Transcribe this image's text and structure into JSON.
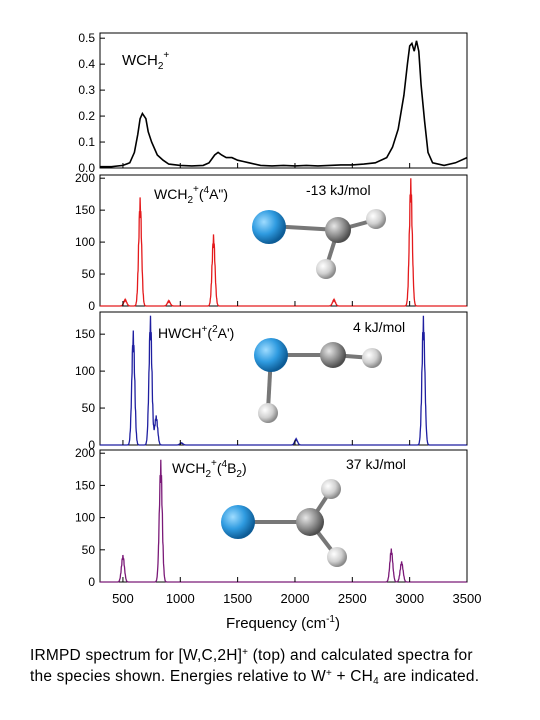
{
  "chart_data": {
    "type": "line",
    "xlabel": "Frequency (cm-1)",
    "xlim": [
      300,
      3500
    ],
    "xticks": [
      500,
      1000,
      1500,
      2000,
      2500,
      3000,
      3500
    ],
    "panels": [
      {
        "id": "exp",
        "label": "WCH2+",
        "energy": "",
        "color": "#000000",
        "ylim": [
          0,
          0.52
        ],
        "yticks": [
          "0.0",
          "0.1",
          "0.2",
          "0.3",
          "0.4",
          "0.5"
        ],
        "spectrum": "experimental",
        "points": [
          [
            300,
            0.005
          ],
          [
            400,
            0.005
          ],
          [
            500,
            0.01
          ],
          [
            560,
            0.02
          ],
          [
            600,
            0.06
          ],
          [
            630,
            0.13
          ],
          [
            650,
            0.19
          ],
          [
            670,
            0.21
          ],
          [
            700,
            0.19
          ],
          [
            720,
            0.14
          ],
          [
            750,
            0.1
          ],
          [
            800,
            0.05
          ],
          [
            850,
            0.03
          ],
          [
            900,
            0.015
          ],
          [
            1000,
            0.01
          ],
          [
            1100,
            0.008
          ],
          [
            1200,
            0.01
          ],
          [
            1250,
            0.02
          ],
          [
            1300,
            0.05
          ],
          [
            1330,
            0.06
          ],
          [
            1360,
            0.05
          ],
          [
            1400,
            0.04
          ],
          [
            1450,
            0.04
          ],
          [
            1500,
            0.03
          ],
          [
            1550,
            0.025
          ],
          [
            1600,
            0.02
          ],
          [
            1700,
            0.01
          ],
          [
            1800,
            0.008
          ],
          [
            1900,
            0.01
          ],
          [
            2000,
            0.008
          ],
          [
            2100,
            0.01
          ],
          [
            2200,
            0.008
          ],
          [
            2300,
            0.01
          ],
          [
            2400,
            0.012
          ],
          [
            2500,
            0.012
          ],
          [
            2600,
            0.015
          ],
          [
            2700,
            0.02
          ],
          [
            2800,
            0.04
          ],
          [
            2850,
            0.08
          ],
          [
            2900,
            0.15
          ],
          [
            2950,
            0.28
          ],
          [
            2980,
            0.4
          ],
          [
            3000,
            0.47
          ],
          [
            3020,
            0.48
          ],
          [
            3040,
            0.45
          ],
          [
            3060,
            0.49
          ],
          [
            3080,
            0.45
          ],
          [
            3100,
            0.32
          ],
          [
            3130,
            0.18
          ],
          [
            3160,
            0.06
          ],
          [
            3200,
            0.02
          ],
          [
            3300,
            0.01
          ],
          [
            3400,
            0.02
          ],
          [
            3500,
            0.04
          ]
        ]
      },
      {
        "id": "a4",
        "label": "WCH2+(4A\")",
        "energy": "-13 kJ/mol",
        "color": "#e41a1c",
        "ylim": [
          0,
          205
        ],
        "yticks": [
          "0",
          "50",
          "100",
          "150",
          "200"
        ],
        "spectrum": "calculated",
        "peaks": [
          [
            520,
            10
          ],
          [
            650,
            170
          ],
          [
            900,
            8
          ],
          [
            1290,
            112
          ],
          [
            2340,
            10
          ],
          [
            3010,
            200
          ]
        ]
      },
      {
        "id": "a2",
        "label": "HWCH+(2A')",
        "energy": "4 kJ/mol",
        "color": "#1f1fa0",
        "ylim": [
          0,
          180
        ],
        "yticks": [
          "0",
          "50",
          "100",
          "150"
        ],
        "spectrum": "calculated",
        "peaks": [
          [
            590,
            155
          ],
          [
            740,
            175
          ],
          [
            790,
            40
          ],
          [
            1010,
            3
          ],
          [
            2010,
            8
          ],
          [
            3120,
            175
          ]
        ]
      },
      {
        "id": "b4",
        "label": "WCH2+(4B2)",
        "energy": "37 kJ/mol",
        "color": "#7b1a78",
        "ylim": [
          0,
          205
        ],
        "yticks": [
          "0",
          "50",
          "100",
          "150",
          "200"
        ],
        "spectrum": "calculated",
        "peaks": [
          [
            500,
            42
          ],
          [
            830,
            190
          ],
          [
            2840,
            52
          ],
          [
            2930,
            32
          ]
        ]
      }
    ]
  },
  "caption": {
    "line1_a": "IRMPD spectrum for [W,C,2H]",
    "line1_sup": "+",
    "line1_b": " (top) and calculated spectra for",
    "line2_a": "the species shown.   Energies relative to W",
    "line2_sup": "+",
    "line2_b": " + CH",
    "line2_sub": "4",
    "line2_c": " are indicated."
  }
}
